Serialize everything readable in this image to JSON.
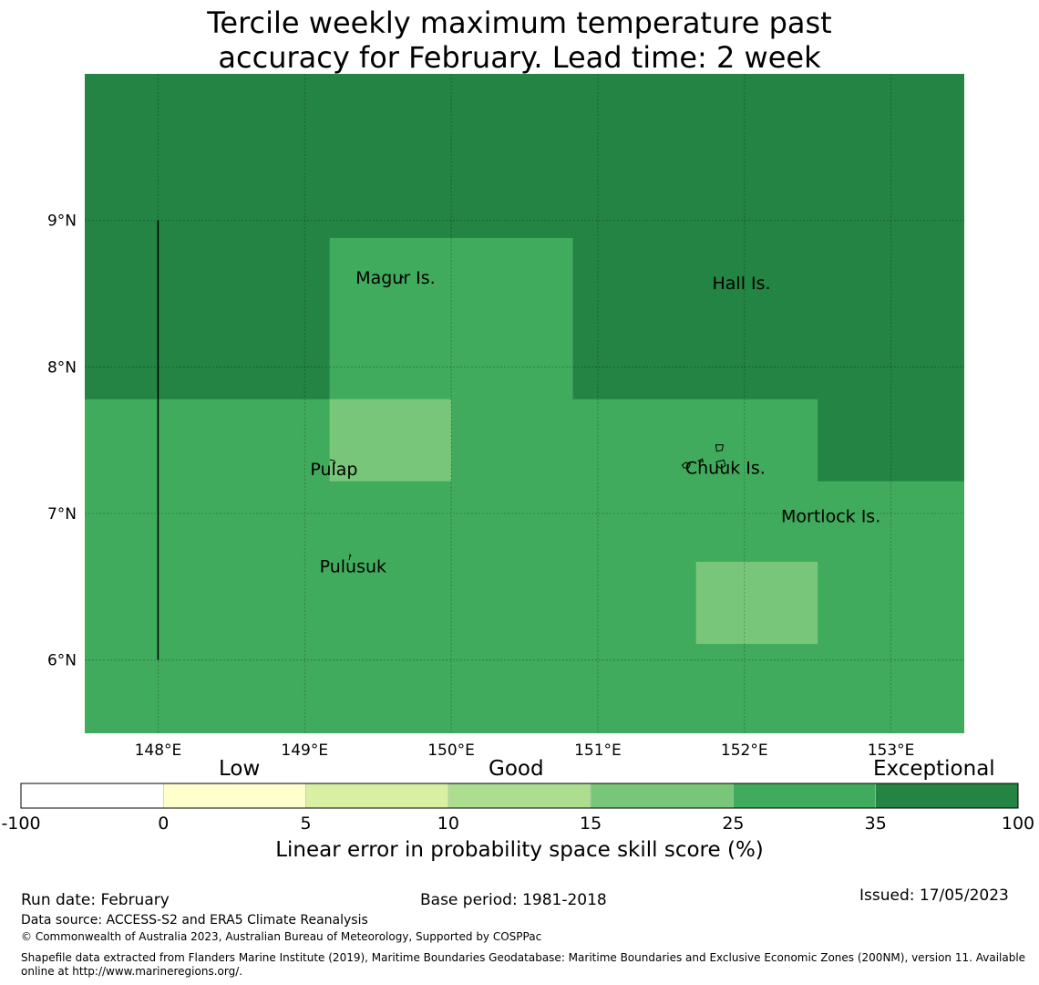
{
  "title": {
    "line1": "Tercile weekly maximum temperature past",
    "line2": "accuracy for February. Lead time: 2 week"
  },
  "map": {
    "lon_range": [
      147.5,
      153.5
    ],
    "lat_range": [
      5.5,
      10.0
    ],
    "lon_ticks": [
      148,
      149,
      150,
      151,
      152,
      153
    ],
    "lon_tick_labels": [
      "148°E",
      "149°E",
      "150°E",
      "151°E",
      "152°E",
      "153°E"
    ],
    "lat_ticks": [
      6,
      7,
      8,
      9
    ],
    "lat_tick_labels": [
      "6°N",
      "7°N",
      "8°N",
      "9°N"
    ],
    "skill_cells": [
      {
        "lon": [
          147.5,
          149.17
        ],
        "lat": [
          7.78,
          10.0
        ],
        "category": 6
      },
      {
        "lon": [
          149.17,
          150.83
        ],
        "lat": [
          8.88,
          10.0
        ],
        "category": 6
      },
      {
        "lon": [
          150.83,
          153.5
        ],
        "lat": [
          7.78,
          10.0
        ],
        "category": 6
      },
      {
        "lon": [
          152.5,
          153.5
        ],
        "lat": [
          7.22,
          7.78
        ],
        "category": 6
      },
      {
        "lon": [
          149.17,
          150.0
        ],
        "lat": [
          7.22,
          7.78
        ],
        "category": 4
      },
      {
        "lon": [
          151.67,
          152.5
        ],
        "lat": [
          6.11,
          6.67
        ],
        "category": 4
      }
    ],
    "base_category": 5,
    "boundary_line": {
      "lon": 148.0,
      "lat": [
        6.0,
        9.0
      ]
    },
    "places": [
      {
        "name": "Magur Is.",
        "lon": 149.62,
        "lat": 8.57
      },
      {
        "name": "Hall Is.",
        "lon": 151.98,
        "lat": 8.53
      },
      {
        "name": "Pulap",
        "lon": 149.2,
        "lat": 7.26
      },
      {
        "name": "Chuuk Is.",
        "lon": 151.87,
        "lat": 7.27
      },
      {
        "name": "Mortlock Is.",
        "lon": 152.59,
        "lat": 6.94
      },
      {
        "name": "Pulusuk",
        "lon": 149.33,
        "lat": 6.6
      }
    ]
  },
  "colorbar": {
    "categories": [
      "Low",
      "Good",
      "Exceptional"
    ],
    "colors": [
      "#ffffff",
      "#ffffcc",
      "#d9f0a3",
      "#addd8e",
      "#78c679",
      "#41ab5d",
      "#238443"
    ],
    "tick_labels": [
      "-100",
      "0",
      "5",
      "10",
      "15",
      "25",
      "35",
      "100"
    ],
    "label": "Linear error in probability space skill score (%)"
  },
  "footer": {
    "run_date": "Run date: February",
    "base_period": "Base period: 1981-2018",
    "issued": "Issued: 17/05/2023",
    "data_source": "Data source: ACCESS-S2 and ERA5 Climate Reanalysis",
    "copyright": "© Commonwealth of Australia 2023, Australian Bureau of Meteorology, Supported by COSPPac",
    "shapefile_line1": "Shapefile data extracted from Flanders Marine Institute (2019), Maritime Boundaries Geodatabase: Maritime Boundaries and Exclusive Economic Zones (200NM), version 11. Available",
    "shapefile_line2": "online at http://www.marineregions.org/."
  }
}
